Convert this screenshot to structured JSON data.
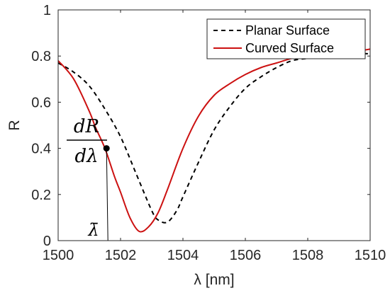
{
  "chart_data": {
    "type": "line",
    "xlabel": "λ [nm]",
    "ylabel": "R",
    "xlim": [
      1500,
      1510
    ],
    "ylim": [
      0,
      1
    ],
    "x_ticks": [
      1500,
      1502,
      1504,
      1506,
      1508,
      1510
    ],
    "y_ticks": [
      0,
      0.2,
      0.4,
      0.6,
      0.8,
      1
    ],
    "y_tick_labels": [
      "0",
      "0.2",
      "0.4",
      "0.6",
      "0.8",
      "1"
    ],
    "grid": false,
    "legend_position": "top-right",
    "series": [
      {
        "name": "Planar Surface",
        "style": "dashed",
        "color": "#000000",
        "x": [
          1500,
          1500.5,
          1501,
          1501.5,
          1502,
          1502.5,
          1503,
          1503.2,
          1503.5,
          1503.8,
          1504,
          1504.5,
          1505,
          1505.5,
          1506,
          1506.5,
          1507,
          1507.5,
          1508,
          1508.5,
          1509,
          1509.5,
          1510
        ],
        "y": [
          0.77,
          0.73,
          0.67,
          0.57,
          0.45,
          0.29,
          0.13,
          0.09,
          0.08,
          0.13,
          0.19,
          0.34,
          0.48,
          0.58,
          0.66,
          0.71,
          0.75,
          0.78,
          0.79,
          0.8,
          0.8,
          0.81,
          0.81
        ]
      },
      {
        "name": "Curved Surface",
        "style": "solid",
        "color": "#cc1111",
        "x": [
          1500,
          1500.5,
          1501,
          1501.2,
          1501.5,
          1501.8,
          1502,
          1502.3,
          1502.6,
          1502.9,
          1503.2,
          1503.5,
          1504,
          1504.5,
          1505,
          1505.5,
          1506,
          1506.5,
          1507,
          1507.5,
          1508,
          1508.5,
          1509,
          1509.5,
          1510
        ],
        "y": [
          0.78,
          0.7,
          0.56,
          0.49,
          0.4,
          0.28,
          0.21,
          0.1,
          0.04,
          0.06,
          0.12,
          0.22,
          0.4,
          0.54,
          0.63,
          0.68,
          0.72,
          0.75,
          0.77,
          0.79,
          0.8,
          0.81,
          0.82,
          0.82,
          0.83
        ]
      }
    ],
    "annotation": {
      "point": [
        1501.55,
        0.4
      ],
      "derivative_numerator": "dR",
      "derivative_denominator": "dλ",
      "lambda_bar": "λ̄"
    }
  }
}
